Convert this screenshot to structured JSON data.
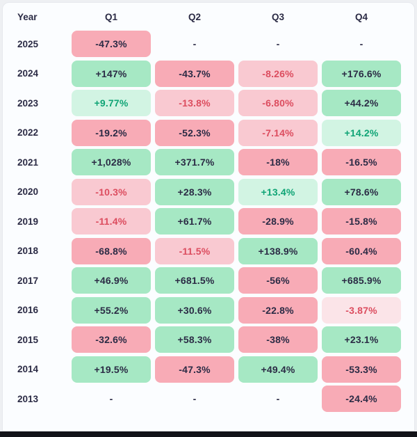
{
  "palette": {
    "dark_text": "#2b2b45",
    "green_text": "#0fa475",
    "red_text": "#dc4d5f",
    "green_strong_bg": "#a6e8c4",
    "green_light_bg": "#d2f4e3",
    "red_strong_bg": "#f8abb6",
    "red_medium_bg": "#f9c9d1",
    "red_faint_bg": "#fbe4e8",
    "card_bg": "#fbfdff",
    "page_bg": "#eef0f3",
    "bottom_bar": "#121318"
  },
  "table": {
    "columns": [
      "Year",
      "Q1",
      "Q2",
      "Q3",
      "Q4"
    ],
    "rows": [
      {
        "year": "2025",
        "cells": [
          {
            "value": "-47.3%",
            "tone": "red-strong"
          },
          {
            "value": "-",
            "tone": "empty"
          },
          {
            "value": "-",
            "tone": "empty"
          },
          {
            "value": "-",
            "tone": "empty"
          }
        ]
      },
      {
        "year": "2024",
        "cells": [
          {
            "value": "+147%",
            "tone": "green-strong"
          },
          {
            "value": "-43.7%",
            "tone": "red-strong"
          },
          {
            "value": "-8.26%",
            "tone": "red-medium"
          },
          {
            "value": "+176.6%",
            "tone": "green-strong"
          }
        ]
      },
      {
        "year": "2023",
        "cells": [
          {
            "value": "+9.77%",
            "tone": "green-light"
          },
          {
            "value": "-13.8%",
            "tone": "red-medium"
          },
          {
            "value": "-6.80%",
            "tone": "red-medium"
          },
          {
            "value": "+44.2%",
            "tone": "green-strong"
          }
        ]
      },
      {
        "year": "2022",
        "cells": [
          {
            "value": "-19.2%",
            "tone": "red-strong"
          },
          {
            "value": "-52.3%",
            "tone": "red-strong"
          },
          {
            "value": "-7.14%",
            "tone": "red-medium"
          },
          {
            "value": "+14.2%",
            "tone": "green-light"
          }
        ]
      },
      {
        "year": "2021",
        "cells": [
          {
            "value": "+1,028%",
            "tone": "green-strong"
          },
          {
            "value": "+371.7%",
            "tone": "green-strong"
          },
          {
            "value": "-18%",
            "tone": "red-strong"
          },
          {
            "value": "-16.5%",
            "tone": "red-strong"
          }
        ]
      },
      {
        "year": "2020",
        "cells": [
          {
            "value": "-10.3%",
            "tone": "red-medium"
          },
          {
            "value": "+28.3%",
            "tone": "green-strong"
          },
          {
            "value": "+13.4%",
            "tone": "green-light"
          },
          {
            "value": "+78.6%",
            "tone": "green-strong"
          }
        ]
      },
      {
        "year": "2019",
        "cells": [
          {
            "value": "-11.4%",
            "tone": "red-medium"
          },
          {
            "value": "+61.7%",
            "tone": "green-strong"
          },
          {
            "value": "-28.9%",
            "tone": "red-strong"
          },
          {
            "value": "-15.8%",
            "tone": "red-strong"
          }
        ]
      },
      {
        "year": "2018",
        "cells": [
          {
            "value": "-68.8%",
            "tone": "red-strong"
          },
          {
            "value": "-11.5%",
            "tone": "red-medium"
          },
          {
            "value": "+138.9%",
            "tone": "green-strong"
          },
          {
            "value": "-60.4%",
            "tone": "red-strong"
          }
        ]
      },
      {
        "year": "2017",
        "cells": [
          {
            "value": "+46.9%",
            "tone": "green-strong"
          },
          {
            "value": "+681.5%",
            "tone": "green-strong"
          },
          {
            "value": "-56%",
            "tone": "red-strong"
          },
          {
            "value": "+685.9%",
            "tone": "green-strong"
          }
        ]
      },
      {
        "year": "2016",
        "cells": [
          {
            "value": "+55.2%",
            "tone": "green-strong"
          },
          {
            "value": "+30.6%",
            "tone": "green-strong"
          },
          {
            "value": "-22.8%",
            "tone": "red-strong"
          },
          {
            "value": "-3.87%",
            "tone": "red-faint"
          }
        ]
      },
      {
        "year": "2015",
        "cells": [
          {
            "value": "-32.6%",
            "tone": "red-strong"
          },
          {
            "value": "+58.3%",
            "tone": "green-strong"
          },
          {
            "value": "-38%",
            "tone": "red-strong"
          },
          {
            "value": "+23.1%",
            "tone": "green-strong"
          }
        ]
      },
      {
        "year": "2014",
        "cells": [
          {
            "value": "+19.5%",
            "tone": "green-strong"
          },
          {
            "value": "-47.3%",
            "tone": "red-strong"
          },
          {
            "value": "+49.4%",
            "tone": "green-strong"
          },
          {
            "value": "-53.3%",
            "tone": "red-strong"
          }
        ]
      },
      {
        "year": "2013",
        "cells": [
          {
            "value": "-",
            "tone": "empty"
          },
          {
            "value": "-",
            "tone": "empty"
          },
          {
            "value": "-",
            "tone": "empty"
          },
          {
            "value": "-24.4%",
            "tone": "red-strong"
          }
        ]
      }
    ]
  },
  "chart_data": {
    "type": "heatmap",
    "columns": [
      "Q1",
      "Q2",
      "Q3",
      "Q4"
    ],
    "rows": [
      "2025",
      "2024",
      "2023",
      "2022",
      "2021",
      "2020",
      "2019",
      "2018",
      "2017",
      "2016",
      "2015",
      "2014",
      "2013"
    ],
    "values": [
      [
        -47.3,
        null,
        null,
        null
      ],
      [
        147,
        -43.7,
        -8.26,
        176.6
      ],
      [
        9.77,
        -13.8,
        -6.8,
        44.2
      ],
      [
        -19.2,
        -52.3,
        -7.14,
        14.2
      ],
      [
        1028,
        371.7,
        -18,
        -16.5
      ],
      [
        -10.3,
        28.3,
        13.4,
        78.6
      ],
      [
        -11.4,
        61.7,
        -28.9,
        -15.8
      ],
      [
        -68.8,
        -11.5,
        138.9,
        -60.4
      ],
      [
        46.9,
        681.5,
        -56,
        685.9
      ],
      [
        55.2,
        30.6,
        -22.8,
        -3.87
      ],
      [
        -32.6,
        58.3,
        -38,
        23.1
      ],
      [
        19.5,
        -47.3,
        49.4,
        -53.3
      ],
      [
        null,
        null,
        null,
        -24.4
      ]
    ],
    "unit": "%",
    "legend": "none",
    "color_scale": {
      "negative": "red/pink",
      "positive": "green",
      "intensity": "scales with magnitude"
    }
  }
}
